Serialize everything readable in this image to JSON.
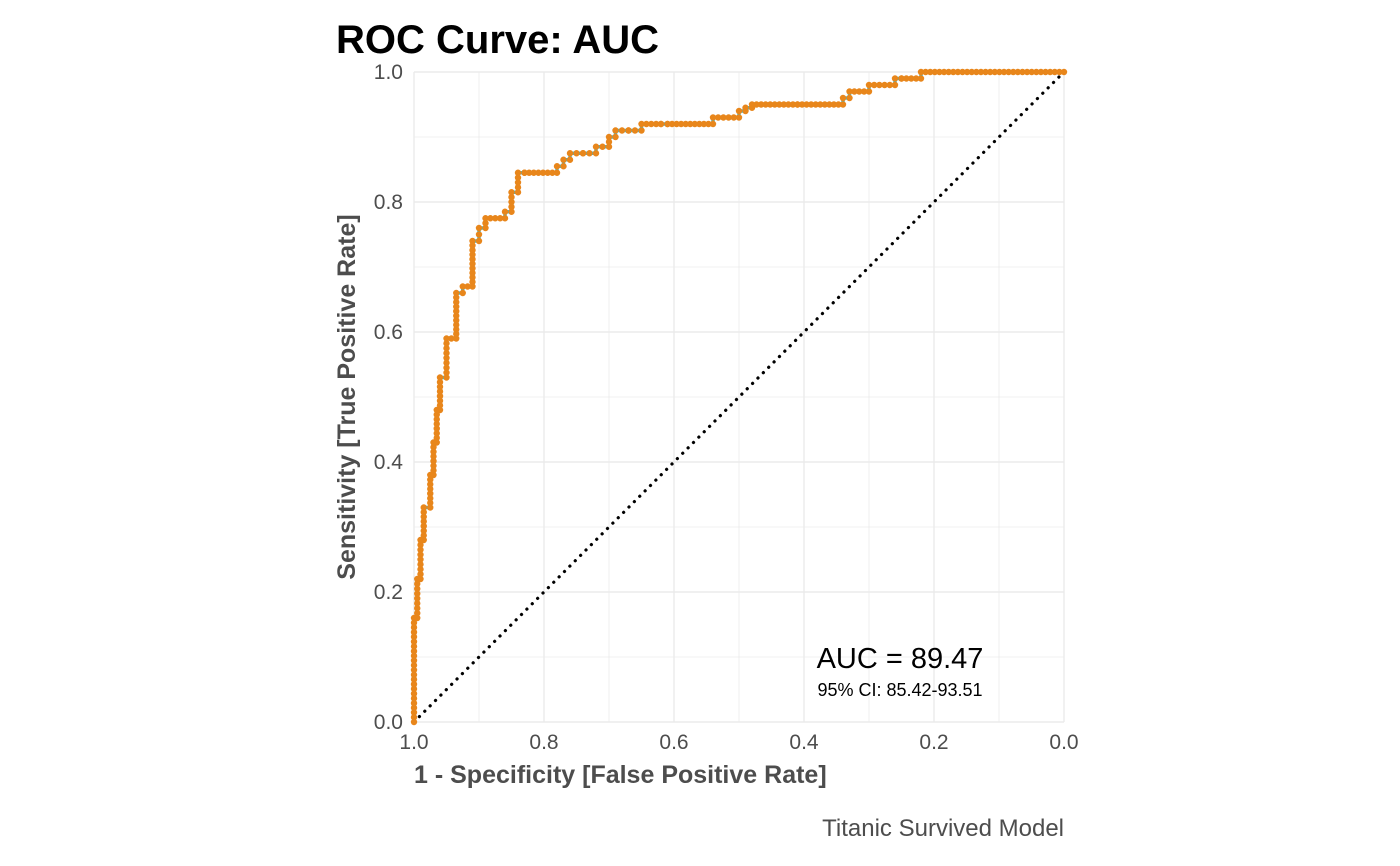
{
  "chart_data": {
    "type": "line",
    "title": "ROC Curve: AUC",
    "xlabel": "1 - Specificity [False Positive Rate]",
    "ylabel": "Sensitivity [True Positive Rate]",
    "caption": "Titanic Survived Model",
    "annotation": {
      "auc_text": "AUC = 89.47",
      "ci_text": "95% CI: 85.42-93.51"
    },
    "x_axis_reversed": true,
    "xlim": [
      1.0,
      0.0
    ],
    "ylim": [
      0.0,
      1.0
    ],
    "x_ticks": [
      "1.0",
      "0.8",
      "0.6",
      "0.4",
      "0.2",
      "0.0"
    ],
    "y_ticks": [
      "0.0",
      "0.2",
      "0.4",
      "0.6",
      "0.8",
      "1.0"
    ],
    "grid": true,
    "colors": {
      "curve_line": "#1fbfea",
      "points": "#e8861b",
      "diagonal": "#000000",
      "grid": "#ebebeb"
    },
    "series": [
      {
        "x": [
          1.0,
          1.0,
          1.0,
          0.995,
          0.995,
          0.99,
          0.99,
          0.985,
          0.985,
          0.975,
          0.975,
          0.97,
          0.97,
          0.965,
          0.965,
          0.96,
          0.96,
          0.95,
          0.95,
          0.935,
          0.935,
          0.925,
          0.925,
          0.91,
          0.91,
          0.9,
          0.9,
          0.89,
          0.89,
          0.86,
          0.86,
          0.85,
          0.85,
          0.84,
          0.84,
          0.83,
          0.83,
          0.78,
          0.78,
          0.77,
          0.77,
          0.76,
          0.76,
          0.74,
          0.74,
          0.72,
          0.72,
          0.7,
          0.7,
          0.69,
          0.69,
          0.67,
          0.67,
          0.65,
          0.65,
          0.62,
          0.62,
          0.61,
          0.61,
          0.54,
          0.54,
          0.5,
          0.5,
          0.49,
          0.49,
          0.48,
          0.48,
          0.41,
          0.41,
          0.34,
          0.34,
          0.33,
          0.33,
          0.3,
          0.3,
          0.26,
          0.26,
          0.25,
          0.25,
          0.22,
          0.22,
          0.0
        ],
        "y": [
          0.0,
          0.08,
          0.16,
          0.16,
          0.22,
          0.22,
          0.28,
          0.28,
          0.33,
          0.33,
          0.38,
          0.38,
          0.43,
          0.43,
          0.48,
          0.48,
          0.53,
          0.53,
          0.59,
          0.59,
          0.66,
          0.66,
          0.67,
          0.67,
          0.74,
          0.74,
          0.76,
          0.76,
          0.775,
          0.775,
          0.785,
          0.785,
          0.815,
          0.815,
          0.845,
          0.845,
          0.845,
          0.845,
          0.855,
          0.855,
          0.865,
          0.865,
          0.875,
          0.875,
          0.875,
          0.875,
          0.885,
          0.885,
          0.9,
          0.9,
          0.91,
          0.91,
          0.91,
          0.91,
          0.92,
          0.92,
          0.92,
          0.92,
          0.92,
          0.92,
          0.93,
          0.93,
          0.94,
          0.94,
          0.945,
          0.945,
          0.95,
          0.95,
          0.95,
          0.95,
          0.96,
          0.96,
          0.97,
          0.97,
          0.98,
          0.98,
          0.99,
          0.99,
          0.99,
          0.99,
          1.0,
          1.0
        ]
      }
    ]
  }
}
